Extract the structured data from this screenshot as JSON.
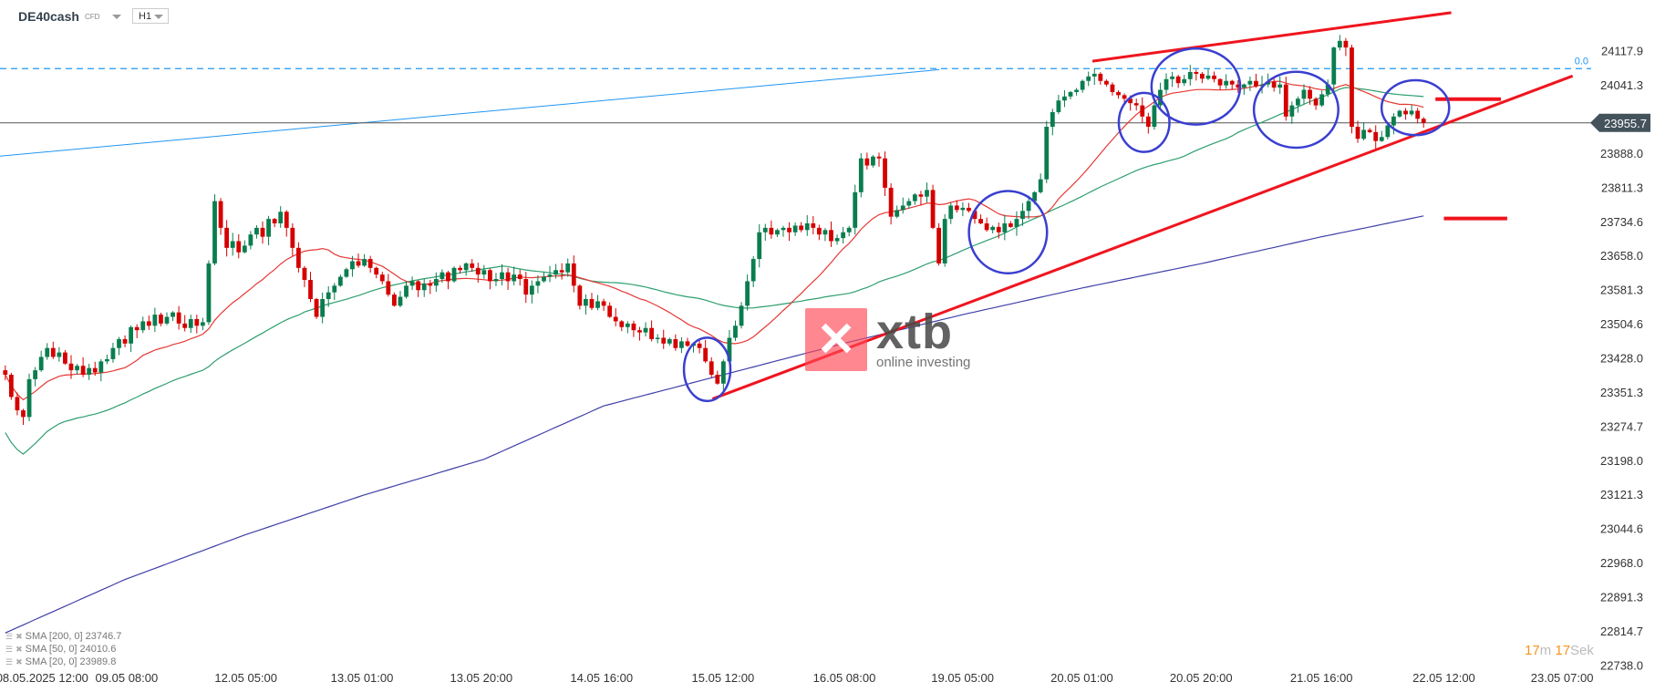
{
  "header": {
    "symbol": "DE40cash",
    "instrument_type": "CFD",
    "timeframe": "H1"
  },
  "countdown": {
    "minutes": "17",
    "minutes_unit": "m",
    "seconds": "17",
    "seconds_unit": "Sek"
  },
  "watermark": {
    "brand": "xtb",
    "tagline": "online investing"
  },
  "colors": {
    "up": "#0a7d4f",
    "down": "#d50000",
    "sma20": "#e53935",
    "sma50": "#2e9e6e",
    "sma200": "#3f3fa8",
    "drawing_red": "#f0141e",
    "drawing_blue": "#3a3fd0",
    "fib_line": "#2196f3",
    "price_label_bg": "#44525c"
  },
  "chart_data": {
    "type": "candlestick",
    "title": "",
    "timeframe": "H1",
    "ylim": [
      22738.0,
      24117.9
    ],
    "y_ticks": [
      "24117.9",
      "24041.3",
      "23888.0",
      "23811.3",
      "23734.6",
      "23658.0",
      "23581.3",
      "23504.6",
      "23428.0",
      "23351.3",
      "23274.7",
      "23198.0",
      "23121.3",
      "23044.6",
      "22968.0",
      "22891.3",
      "22814.7",
      "22738.0"
    ],
    "x_ticks": [
      "08.05.2025  12:00",
      "09.05  08:00",
      "12.05  05:00",
      "13.05  01:00",
      "13.05  20:00",
      "14.05  16:00",
      "15.05  12:00",
      "16.05  08:00",
      "19.05  05:00",
      "20.05  01:00",
      "20.05  20:00",
      "21.05  16:00",
      "22.05  12:00",
      "23.05  07:00"
    ],
    "current_price": "23955.7",
    "fib_label": "0.0",
    "fib_level": 24077.6,
    "closes": [
      23390,
      23340,
      23310,
      23295,
      23380,
      23400,
      23430,
      23450,
      23430,
      23440,
      23415,
      23400,
      23410,
      23390,
      23405,
      23395,
      23420,
      23425,
      23450,
      23470,
      23460,
      23497,
      23490,
      23510,
      23500,
      23525,
      23505,
      23520,
      23530,
      23505,
      23495,
      23515,
      23500,
      23508,
      23640,
      23780,
      23720,
      23675,
      23690,
      23665,
      23680,
      23705,
      23720,
      23700,
      23740,
      23730,
      23756,
      23720,
      23675,
      23630,
      23603,
      23560,
      23520,
      23560,
      23575,
      23590,
      23610,
      23627,
      23645,
      23635,
      23650,
      23630,
      23615,
      23600,
      23570,
      23545,
      23565,
      23590,
      23600,
      23580,
      23595,
      23590,
      23605,
      23620,
      23600,
      23630,
      23625,
      23640,
      23630,
      23615,
      23625,
      23600,
      23605,
      23620,
      23600,
      23615,
      23605,
      23570,
      23590,
      23600,
      23610,
      23615,
      23625,
      23620,
      23640,
      23590,
      23545,
      23560,
      23540,
      23555,
      23545,
      23520,
      23510,
      23497,
      23505,
      23490,
      23485,
      23495,
      23470,
      23473,
      23460,
      23470,
      23450,
      23465,
      23455,
      23460,
      23450,
      23420,
      23390,
      23370,
      23420,
      23473,
      23500,
      23545,
      23600,
      23650,
      23710,
      23720,
      23705,
      23715,
      23720,
      23710,
      23725,
      23715,
      23730,
      23720,
      23705,
      23715,
      23690,
      23697,
      23710,
      23720,
      23800,
      23876,
      23860,
      23880,
      23876,
      23810,
      23745,
      23760,
      23770,
      23780,
      23795,
      23790,
      23805,
      23720,
      23640,
      23740,
      23770,
      23760,
      23765,
      23758,
      23740,
      23730,
      23715,
      23722,
      23710,
      23730,
      23722,
      23740,
      23758,
      23780,
      23800,
      23829,
      23947,
      23980,
      24006,
      24015,
      24025,
      24030,
      24050,
      24060,
      24066,
      24050,
      24042,
      24025,
      24018,
      24010,
      24000,
      23995,
      23970,
      23947,
      23995,
      24030,
      24054,
      24060,
      24045,
      24054,
      24070,
      24066,
      24055,
      24062,
      24054,
      24040,
      24050,
      24042,
      24035,
      24042,
      24050,
      24038,
      24042,
      24048,
      24035,
      24042,
      23970,
      23995,
      24010,
      24030,
      24010,
      23995,
      24020,
      24042,
      24125,
      24140,
      24125,
      23947,
      23920,
      23940,
      23935,
      23915,
      23924,
      23950,
      23970,
      23983,
      23975,
      23983,
      23965,
      23955.7
    ],
    "sma200_samples": [
      [
        0,
        22810
      ],
      [
        20,
        22930
      ],
      [
        40,
        23030
      ],
      [
        60,
        23120
      ],
      [
        80,
        23200
      ],
      [
        100,
        23320
      ],
      [
        120,
        23390
      ],
      [
        140,
        23460
      ],
      [
        160,
        23525
      ],
      [
        180,
        23585
      ],
      [
        200,
        23640
      ],
      [
        220,
        23700
      ],
      [
        237,
        23746.7
      ]
    ],
    "indicators": [
      {
        "label": "SMA [200,  0] 23746.7",
        "period": 200,
        "value": 23746.7
      },
      {
        "label": "SMA [50,  0] 24010.6",
        "period": 50,
        "value": 24010.6
      },
      {
        "label": "SMA [20,  0] 23989.8",
        "period": 20,
        "value": 23989.8
      }
    ]
  }
}
